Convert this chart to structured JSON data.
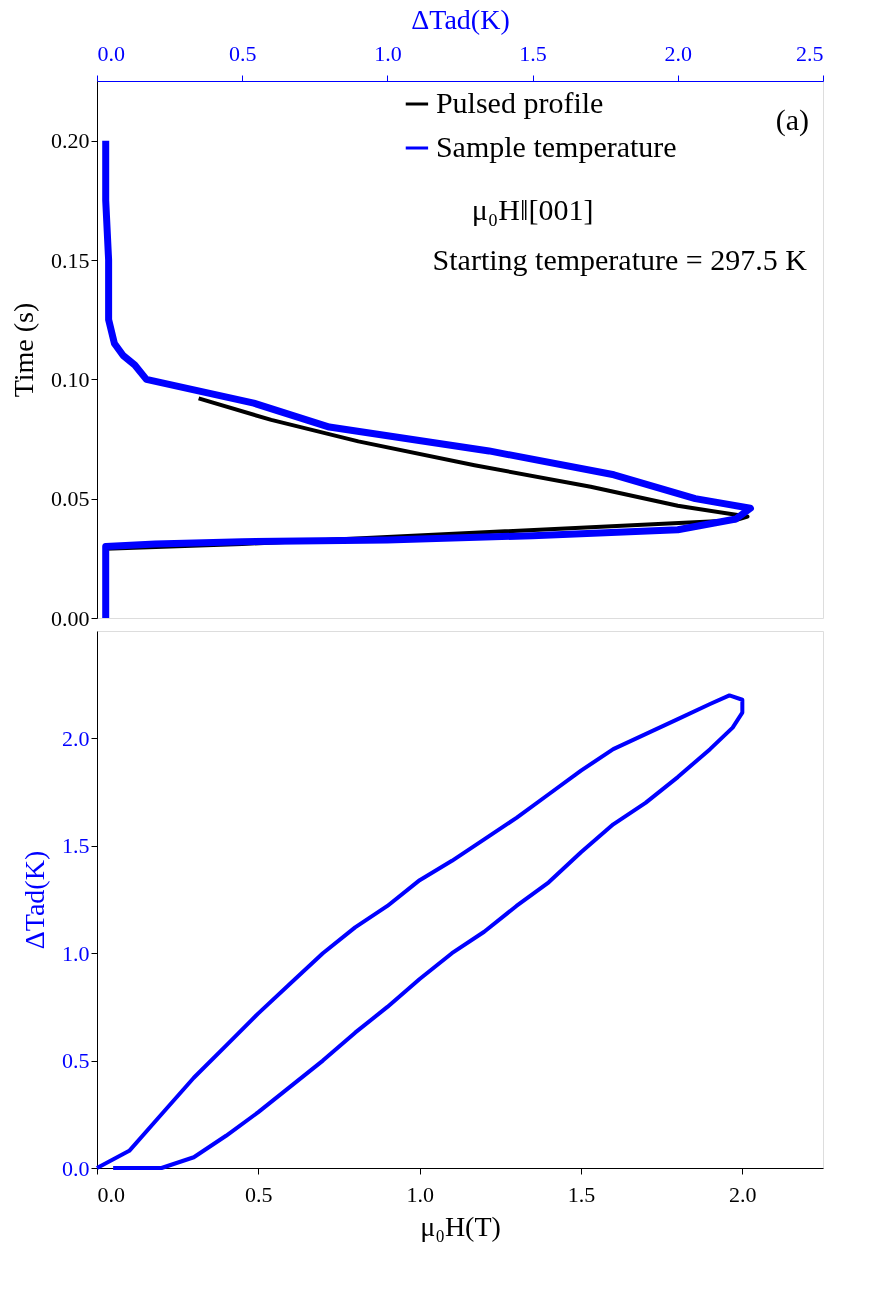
{
  "chart_data": [
    {
      "type": "line",
      "xlabel": "ΔTad(K)",
      "ylabel": "Time (s)",
      "xlim": [
        0,
        2.5
      ],
      "xticks": [
        {
          "value": 0,
          "label": "0.0"
        },
        {
          "value": 0.5,
          "label": "0.5"
        },
        {
          "value": 1,
          "label": "1.0"
        },
        {
          "value": 1.5,
          "label": "1.5"
        },
        {
          "value": 2,
          "label": "2.0"
        },
        {
          "value": 2.5,
          "label": "2.5"
        }
      ],
      "ylim": [
        0,
        0.225
      ],
      "yticks": [
        {
          "value": 0,
          "label": "0.00"
        },
        {
          "value": 0.05,
          "label": "0.05"
        },
        {
          "value": 0.1,
          "label": "0.10"
        },
        {
          "value": 0.15,
          "label": "0.15"
        },
        {
          "value": 0.2,
          "label": "0.20"
        }
      ],
      "grid": false,
      "legend": "top right",
      "annotations": [
        "(a)",
        "μ₀H‖[001]",
        "Starting temperature = 297.5 K"
      ],
      "series": [
        {
          "name": "Pulsed profile",
          "color": "#000000",
          "x": [
            0.03,
            0.03,
            0.5,
            1.0,
            1.5,
            2.0,
            2.2,
            2.24,
            2.0,
            1.7,
            1.3,
            0.9,
            0.6,
            0.35
          ],
          "values": [
            0,
            0.029,
            0.031,
            null,
            null,
            null,
            0.041,
            0.0425,
            0.047,
            0.055,
            0.064,
            0.074,
            0.083,
            0.092
          ]
        },
        {
          "name": "Sample temperature",
          "color": "#0000ff",
          "x": [
            0.03,
            0.03,
            0.2,
            0.5,
            1.0,
            1.5,
            2.0,
            2.2,
            2.25,
            2.06,
            1.78,
            1.35,
            0.8,
            0.54,
            0.17,
            0.13,
            0.09,
            0.06,
            0.04,
            0.04,
            0.03,
            0.03
          ],
          "values": [
            0,
            0.03,
            0.031,
            0.032,
            0.0327,
            0.0345,
            0.037,
            0.0415,
            0.046,
            0.05,
            0.06,
            0.07,
            0.08,
            0.09,
            0.1,
            0.106,
            0.11,
            0.115,
            0.125,
            0.15,
            0.175,
            0.2
          ]
        }
      ]
    },
    {
      "type": "line",
      "xlabel": "μ₀H(T)",
      "ylabel": "ΔTad(K)",
      "xlim": [
        0,
        2.25
      ],
      "xticks": [
        {
          "value": 0,
          "label": "0.0"
        },
        {
          "value": 0.5,
          "label": "0.5"
        },
        {
          "value": 1,
          "label": "1.0"
        },
        {
          "value": 1.5,
          "label": "1.5"
        },
        {
          "value": 2,
          "label": "2.0"
        }
      ],
      "ylim": [
        0,
        2.5
      ],
      "yticks": [
        {
          "value": 0,
          "label": "0.0"
        },
        {
          "value": 0.5,
          "label": "0.5"
        },
        {
          "value": 1,
          "label": "1.0"
        },
        {
          "value": 1.5,
          "label": "1.5"
        },
        {
          "value": 2,
          "label": "2.0"
        }
      ],
      "grid": false,
      "series": [
        {
          "color": "#0000ff",
          "x": [
            0,
            0.1,
            0.2,
            0.3,
            0.4,
            0.5,
            0.6,
            0.7,
            0.8,
            0.9,
            1.0,
            1.1,
            1.2,
            1.3,
            1.4,
            1.5,
            1.6,
            1.7,
            1.8,
            1.9,
            1.96,
            2.0,
            2.0,
            1.97,
            1.9,
            1.8,
            1.7,
            1.6,
            1.5,
            1.4,
            1.3,
            1.2,
            1.1,
            1.0,
            0.9,
            0.8,
            0.7,
            0.6,
            0.5,
            0.4,
            0.3,
            0.2,
            0.1,
            0.05
          ],
          "values": [
            0,
            0.08,
            0.25,
            0.42,
            0.57,
            0.72,
            0.86,
            1.0,
            1.12,
            1.22,
            1.34,
            1.43,
            1.53,
            1.63,
            1.74,
            1.85,
            1.95,
            2.02,
            2.09,
            2.16,
            2.2,
            2.18,
            2.12,
            2.05,
            1.95,
            1.82,
            1.7,
            1.6,
            1.47,
            1.33,
            1.22,
            1.1,
            1.0,
            0.88,
            0.75,
            0.63,
            0.5,
            0.38,
            0.26,
            0.15,
            0.05,
            0.0,
            0.0,
            0.0
          ]
        }
      ]
    }
  ]
}
